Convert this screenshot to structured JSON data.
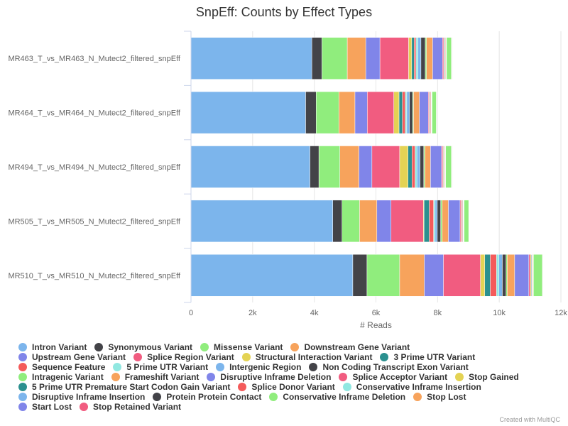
{
  "chart_data": {
    "type": "bar",
    "orientation": "horizontal",
    "stacked": true,
    "title": "SnpEff: Counts by Effect Types",
    "xlabel": "# Reads",
    "ylabel": "",
    "xlim": [
      0,
      12000
    ],
    "xticks": [
      0,
      2000,
      4000,
      6000,
      8000,
      10000,
      12000
    ],
    "xtick_labels": [
      "0",
      "2k",
      "4k",
      "6k",
      "8k",
      "10k",
      "12k"
    ],
    "grid": true,
    "legend_position": "bottom",
    "categories": [
      "MR463_T_vs_MR463_N_Mutect2_filtered_snpEff",
      "MR464_T_vs_MR464_N_Mutect2_filtered_snpEff",
      "MR494_T_vs_MR494_N_Mutect2_filtered_snpEff",
      "MR505_T_vs_MR505_N_Mutect2_filtered_snpEff",
      "MR510_T_vs_MR510_N_Mutect2_filtered_snpEff"
    ],
    "series": [
      {
        "name": "Intron Variant",
        "color": "#7cb5ec",
        "values": [
          3920,
          3720,
          3860,
          4600,
          5250
        ]
      },
      {
        "name": "Synonymous Variant",
        "color": "#434348",
        "values": [
          330,
          340,
          290,
          300,
          460
        ]
      },
      {
        "name": "Missense Variant",
        "color": "#90ed7d",
        "values": [
          820,
          740,
          680,
          570,
          1060
        ]
      },
      {
        "name": "Downstream Gene Variant",
        "color": "#f7a35c",
        "values": [
          600,
          520,
          620,
          560,
          800
        ]
      },
      {
        "name": "Upstream Gene Variant",
        "color": "#8085e9",
        "values": [
          460,
          400,
          420,
          460,
          620
        ]
      },
      {
        "name": "Splice Region Variant",
        "color": "#f15c80",
        "values": [
          930,
          860,
          900,
          1050,
          1200
        ]
      },
      {
        "name": "Structural Interaction Variant",
        "color": "#e4d354",
        "values": [
          100,
          170,
          270,
          20,
          140
        ]
      },
      {
        "name": "3 Prime UTR Variant",
        "color": "#2b908f",
        "values": [
          80,
          110,
          130,
          170,
          180
        ]
      },
      {
        "name": "Sequence Feature",
        "color": "#f45b5b",
        "values": [
          60,
          90,
          100,
          140,
          200
        ]
      },
      {
        "name": "5 Prime UTR Variant",
        "color": "#91e8e1",
        "values": [
          60,
          50,
          60,
          50,
          80
        ]
      },
      {
        "name": "Intergenic Region",
        "color": "#7cb5ec",
        "values": [
          100,
          90,
          100,
          70,
          110
        ]
      },
      {
        "name": "Non Coding Transcript Exon Variant",
        "color": "#434348",
        "values": [
          140,
          100,
          120,
          110,
          120
        ]
      },
      {
        "name": "Intragenic Variant",
        "color": "#90ed7d",
        "values": [
          40,
          30,
          40,
          50,
          40
        ]
      },
      {
        "name": "Frameshift Variant",
        "color": "#f7a35c",
        "values": [
          200,
          190,
          180,
          200,
          240
        ]
      },
      {
        "name": "Disruptive Inframe Deletion",
        "color": "#8085e9",
        "values": [
          320,
          290,
          360,
          380,
          460
        ]
      },
      {
        "name": "Splice Acceptor Variant",
        "color": "#f15c80",
        "values": [
          40,
          30,
          40,
          40,
          50
        ]
      },
      {
        "name": "Stop Gained",
        "color": "#e4d354",
        "values": [
          20,
          20,
          20,
          20,
          30
        ]
      },
      {
        "name": "5 Prime UTR Premature Start Codon Gain Variant",
        "color": "#2b908f",
        "values": [
          20,
          20,
          20,
          20,
          20
        ]
      },
      {
        "name": "Splice Donor Variant",
        "color": "#f45b5b",
        "values": [
          20,
          20,
          20,
          20,
          20
        ]
      },
      {
        "name": "Conservative Inframe Insertion",
        "color": "#91e8e1",
        "values": [
          10,
          10,
          10,
          10,
          10
        ]
      },
      {
        "name": "Disruptive Inframe Insertion",
        "color": "#7cb5ec",
        "values": [
          10,
          10,
          10,
          10,
          10
        ]
      },
      {
        "name": "Protein Protein Contact",
        "color": "#434348",
        "values": [
          10,
          10,
          10,
          10,
          10
        ]
      },
      {
        "name": "Conservative Inframe Deletion",
        "color": "#90ed7d",
        "values": [
          160,
          140,
          190,
          150,
          290
        ]
      },
      {
        "name": "Stop Lost",
        "color": "#f7a35c",
        "values": [
          10,
          10,
          10,
          10,
          10
        ]
      },
      {
        "name": "Start Lost",
        "color": "#8085e9",
        "values": [
          10,
          10,
          10,
          10,
          10
        ]
      },
      {
        "name": "Stop Retained Variant",
        "color": "#f15c80",
        "values": [
          10,
          10,
          10,
          10,
          10
        ]
      }
    ]
  },
  "legend_rows": [
    [
      0,
      1,
      2,
      3
    ],
    [
      4,
      5,
      6,
      7
    ],
    [
      8,
      9,
      10,
      11
    ],
    [
      12,
      13,
      14,
      15,
      16
    ],
    [
      17,
      18,
      19
    ],
    [
      20,
      21,
      22,
      23
    ],
    [
      24,
      25
    ]
  ],
  "credit": "Created with MultiQC"
}
